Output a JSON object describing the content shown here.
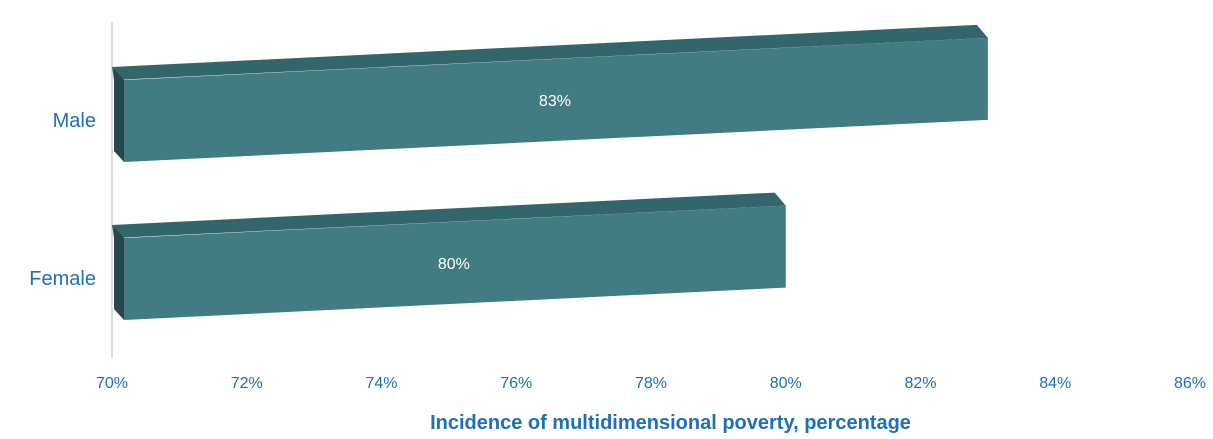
{
  "chart_data": {
    "type": "bar",
    "orientation": "horizontal",
    "style": "3d",
    "categories": [
      "Male",
      "Female"
    ],
    "values": [
      83,
      80
    ],
    "data_labels": [
      "83%",
      "80%"
    ],
    "xlim": [
      70,
      86
    ],
    "x_ticks": [
      70,
      72,
      74,
      76,
      78,
      80,
      82,
      84,
      86
    ],
    "x_tick_labels": [
      "70%",
      "72%",
      "74%",
      "76%",
      "78%",
      "80%",
      "82%",
      "84%",
      "86%"
    ],
    "xlabel": "Incidence of multidimensional poverty, percentage",
    "grid": false,
    "legend": "none"
  },
  "colors": {
    "bar_front": "#427b82",
    "bar_top": "#33666b",
    "bar_side": "#29474b",
    "axis_text": "#1f6fb5",
    "axis_line": "#d0d0d0",
    "data_label": "#ffffff"
  }
}
